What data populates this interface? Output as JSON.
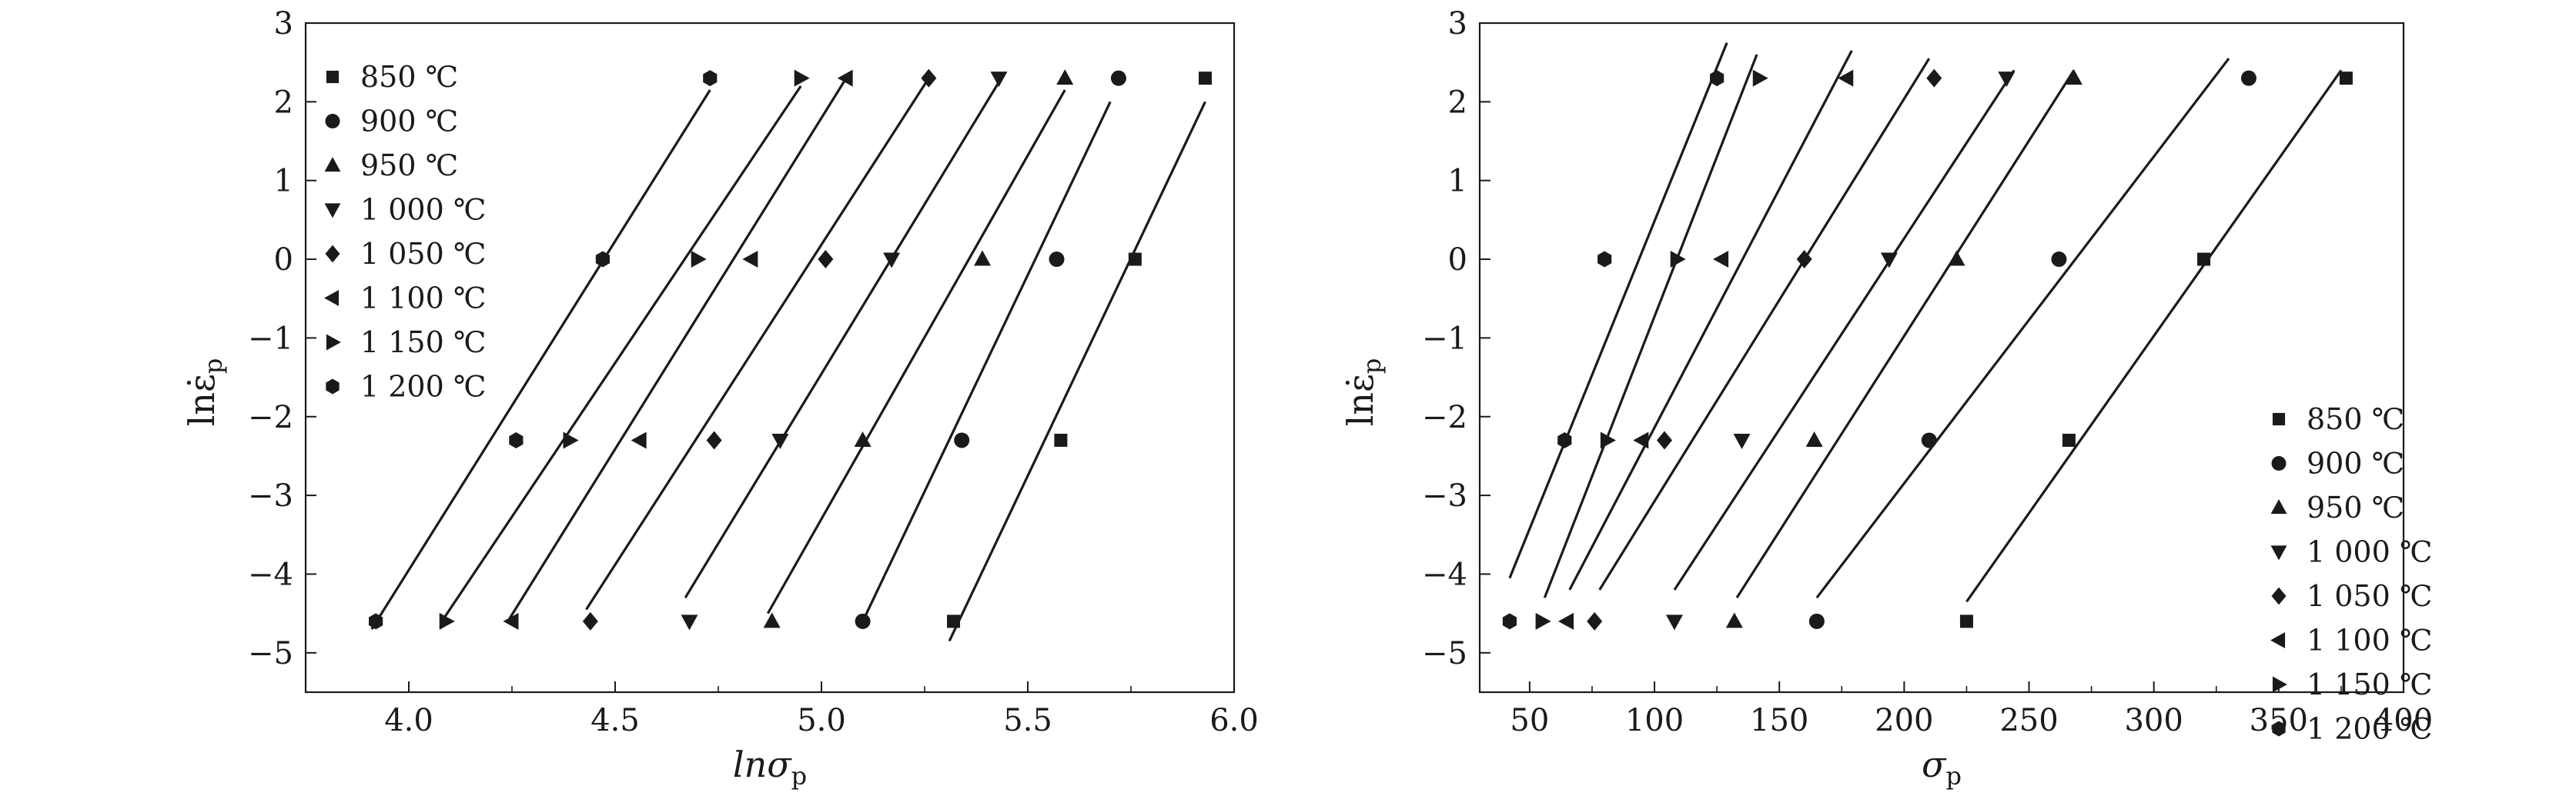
{
  "chart_data": [
    {
      "type": "scatter",
      "xlabel": "lnσ_p",
      "ylabel": "lnε̇_p",
      "xlim": [
        3.75,
        6.0
      ],
      "ylim": [
        -5.5,
        3
      ],
      "x_ticks": [
        "4.0",
        "4.5",
        "5.0",
        "5.5",
        "6.0"
      ],
      "y_ticks": [
        "3",
        "2",
        "1",
        "0",
        "−1",
        "−2",
        "−3",
        "−4",
        "−5"
      ],
      "legend_position": "top-left",
      "grid": false,
      "series": [
        {
          "name": "850 ℃",
          "marker": "square",
          "points": [
            [
              5.32,
              -4.6
            ],
            [
              5.58,
              -2.3
            ],
            [
              5.76,
              0.0
            ],
            [
              5.93,
              2.3
            ]
          ],
          "fit_line": [
            [
              5.31,
              -4.85
            ],
            [
              5.93,
              2.0
            ]
          ]
        },
        {
          "name": "900 ℃",
          "marker": "circle",
          "points": [
            [
              5.1,
              -4.6
            ],
            [
              5.34,
              -2.3
            ],
            [
              5.57,
              0.0
            ],
            [
              5.72,
              2.3
            ]
          ],
          "fit_line": [
            [
              5.1,
              -4.6
            ],
            [
              5.7,
              2.0
            ]
          ]
        },
        {
          "name": "950 ℃",
          "marker": "triangle-up",
          "points": [
            [
              4.88,
              -4.6
            ],
            [
              5.1,
              -2.3
            ],
            [
              5.39,
              0.0
            ],
            [
              5.59,
              2.3
            ]
          ],
          "fit_line": [
            [
              4.87,
              -4.5
            ],
            [
              5.59,
              2.15
            ]
          ]
        },
        {
          "name": "1 000 ℃",
          "marker": "triangle-down",
          "points": [
            [
              4.68,
              -4.6
            ],
            [
              4.9,
              -2.3
            ],
            [
              5.17,
              0.0
            ],
            [
              5.43,
              2.3
            ]
          ],
          "fit_line": [
            [
              4.67,
              -4.3
            ],
            [
              5.43,
              2.25
            ]
          ]
        },
        {
          "name": "1 050 ℃",
          "marker": "diamond",
          "points": [
            [
              4.44,
              -4.6
            ],
            [
              4.74,
              -2.3
            ],
            [
              5.01,
              0.0
            ],
            [
              5.26,
              2.3
            ]
          ],
          "fit_line": [
            [
              4.43,
              -4.45
            ],
            [
              5.26,
              2.3
            ]
          ]
        },
        {
          "name": "1 100 ℃",
          "marker": "triangle-left",
          "points": [
            [
              4.25,
              -4.6
            ],
            [
              4.56,
              -2.3
            ],
            [
              4.83,
              0.0
            ],
            [
              5.06,
              2.3
            ]
          ],
          "fit_line": [
            [
              4.24,
              -4.6
            ],
            [
              5.06,
              2.3
            ]
          ]
        },
        {
          "name": "1 150 ℃",
          "marker": "triangle-right",
          "points": [
            [
              4.09,
              -4.6
            ],
            [
              4.39,
              -2.3
            ],
            [
              4.7,
              0.0
            ],
            [
              4.95,
              2.3
            ]
          ],
          "fit_line": [
            [
              4.08,
              -4.6
            ],
            [
              4.95,
              2.2
            ]
          ]
        },
        {
          "name": "1 200 ℃",
          "marker": "hexagon",
          "points": [
            [
              3.92,
              -4.6
            ],
            [
              4.26,
              -2.3
            ],
            [
              4.47,
              0.0
            ],
            [
              4.73,
              2.3
            ]
          ],
          "fit_line": [
            [
              3.91,
              -4.7
            ],
            [
              4.73,
              2.15
            ]
          ]
        }
      ]
    },
    {
      "type": "scatter",
      "xlabel": "σ_p",
      "ylabel": "lnε̇_p",
      "xlim": [
        30,
        400
      ],
      "ylim": [
        -5.5,
        3
      ],
      "x_ticks": [
        "50",
        "100",
        "150",
        "200",
        "250",
        "300",
        "350",
        "400"
      ],
      "y_ticks": [
        "3",
        "2",
        "1",
        "0",
        "−1",
        "−2",
        "−3",
        "−4",
        "−5"
      ],
      "legend_position": "bottom-right",
      "grid": false,
      "series": [
        {
          "name": "850 ℃",
          "marker": "square",
          "points": [
            [
              225,
              -4.6
            ],
            [
              266,
              -2.3
            ],
            [
              320,
              0.0
            ],
            [
              377,
              2.3
            ]
          ],
          "fit_line": [
            [
              225,
              -4.35
            ],
            [
              375,
              2.4
            ]
          ]
        },
        {
          "name": "900 ℃",
          "marker": "circle",
          "points": [
            [
              165,
              -4.6
            ],
            [
              210,
              -2.3
            ],
            [
              262,
              0.0
            ],
            [
              338,
              2.3
            ]
          ],
          "fit_line": [
            [
              165,
              -4.3
            ],
            [
              330,
              2.55
            ]
          ]
        },
        {
          "name": "950 ℃",
          "marker": "triangle-up",
          "points": [
            [
              132,
              -4.6
            ],
            [
              164,
              -2.3
            ],
            [
              221,
              0.0
            ],
            [
              268,
              2.3
            ]
          ],
          "fit_line": [
            [
              133,
              -4.3
            ],
            [
              268,
              2.4
            ]
          ]
        },
        {
          "name": "1 000 ℃",
          "marker": "triangle-down",
          "points": [
            [
              108,
              -4.6
            ],
            [
              135,
              -2.3
            ],
            [
              194,
              0.0
            ],
            [
              241,
              2.3
            ]
          ],
          "fit_line": [
            [
              108,
              -4.2
            ],
            [
              244,
              2.4
            ]
          ]
        },
        {
          "name": "1 050 ℃",
          "marker": "diamond",
          "points": [
            [
              76,
              -4.6
            ],
            [
              104,
              -2.3
            ],
            [
              160,
              0.0
            ],
            [
              212,
              2.3
            ]
          ],
          "fit_line": [
            [
              78,
              -4.2
            ],
            [
              210,
              2.55
            ]
          ]
        },
        {
          "name": "1 100 ℃",
          "marker": "triangle-left",
          "points": [
            [
              65,
              -4.6
            ],
            [
              95,
              -2.3
            ],
            [
              127,
              0.0
            ],
            [
              177,
              2.3
            ]
          ],
          "fit_line": [
            [
              66,
              -4.2
            ],
            [
              179,
              2.65
            ]
          ]
        },
        {
          "name": "1 150 ℃",
          "marker": "triangle-right",
          "points": [
            [
              55,
              -4.6
            ],
            [
              81,
              -2.3
            ],
            [
              109,
              0.0
            ],
            [
              142,
              2.3
            ]
          ],
          "fit_line": [
            [
              56,
              -4.3
            ],
            [
              141,
              2.6
            ]
          ]
        },
        {
          "name": "1 200 ℃",
          "marker": "hexagon",
          "points": [
            [
              42,
              -4.6
            ],
            [
              64,
              -2.3
            ],
            [
              80,
              0.0
            ],
            [
              125,
              2.3
            ]
          ],
          "fit_line": [
            [
              42,
              -4.05
            ],
            [
              129,
              2.75
            ]
          ]
        }
      ]
    }
  ]
}
